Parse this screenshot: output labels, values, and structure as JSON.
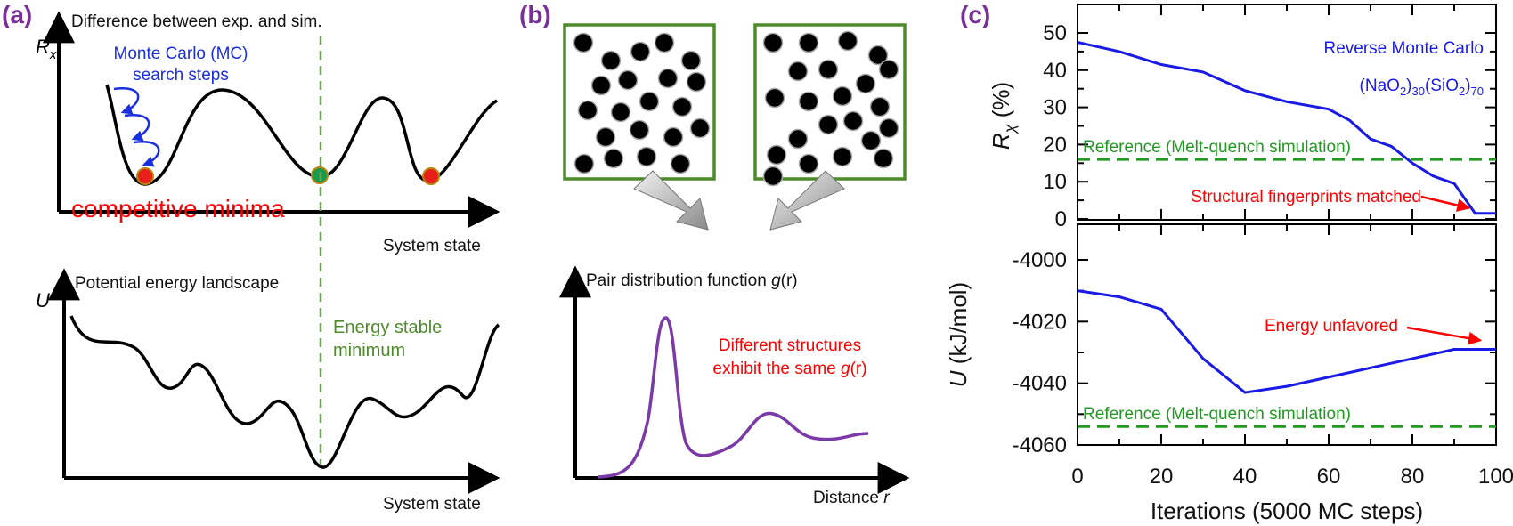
{
  "panels": {
    "a": {
      "label": "(a)",
      "top": {
        "title": "Difference between exp. and sim.",
        "ylabel_main": "R",
        "ylabel_sub": "x",
        "xlabel": "System state",
        "mc_label_line1": "Monte Carlo (MC)",
        "mc_label_line2": "search steps",
        "minima_label": "competitive minima"
      },
      "bottom": {
        "title": "Potential energy landscape",
        "ylabel": "U",
        "xlabel": "System state",
        "stable_label_line1": "Energy stable",
        "stable_label_line2": "minimum"
      },
      "colors": {
        "mc": "#1a2fe0",
        "minima": "#ff0000",
        "stable": "#4c8a2a",
        "dot_red": "#e8201a",
        "dot_green": "#1a9a4a"
      }
    },
    "b": {
      "label": "(b)",
      "gr_title_prefix": "Pair distribution function ",
      "gr_title_g": "g",
      "gr_title_r": "(r)",
      "xlabel_prefix": "Distance ",
      "xlabel_r": "r",
      "note_line1": "Different structures",
      "note_line2_prefix": "exhibit the same ",
      "note_line2_g": "g",
      "note_line2_r": "(r)",
      "colors": {
        "box": "#4c8a2a",
        "curve": "#7b3aa8",
        "note": "#ff0000"
      }
    },
    "c": {
      "label": "(c)",
      "xlabel": "Iterations (5000 MC steps)",
      "colors": {
        "series": "#1a1ae6",
        "reference": "#229a22",
        "annotation": "#ff0000"
      }
    }
  },
  "chart_data": [
    {
      "type": "line",
      "title": "",
      "xlabel": "Iterations (5000 MC steps)",
      "ylabel_main": "R",
      "ylabel_sub": "χ",
      "ylabel_unit": " (%)",
      "xlim": [
        0,
        100
      ],
      "ylim": [
        0,
        50
      ],
      "xticks": [
        0,
        20,
        40,
        60,
        80,
        100
      ],
      "yticks": [
        0,
        10,
        20,
        30,
        40,
        50
      ],
      "series": [
        {
          "name": "Reverse Monte Carlo",
          "x": [
            0,
            10,
            20,
            30,
            40,
            50,
            60,
            65,
            70,
            75,
            80,
            85,
            90,
            95,
            100
          ],
          "y": [
            47.5,
            45,
            41.5,
            39.5,
            34.5,
            31.5,
            29.5,
            26.5,
            21.5,
            19.5,
            15,
            11.5,
            9.5,
            1.5,
            1.5
          ]
        }
      ],
      "reference": {
        "label": "Reference (Melt-quench simulation)",
        "y": 16
      },
      "legend": "Reverse Monte Carlo",
      "composition": {
        "a": "(NaO",
        "a_sub": "2",
        "b": ")",
        "b_sub": "30",
        "c": "(SiO",
        "c_sub": "2",
        "d": ")",
        "d_sub": "70"
      },
      "annotation": {
        "text": "Structural fingerprints matched",
        "x": 94,
        "y": 1.5
      }
    },
    {
      "type": "line",
      "title": "",
      "xlabel": "Iterations (5000 MC steps)",
      "ylabel_main": "U",
      "ylabel_unit": " (kJ/mol)",
      "xlim": [
        0,
        100
      ],
      "ylim": [
        -4060,
        -4000
      ],
      "xticks": [
        0,
        20,
        40,
        60,
        80,
        100
      ],
      "yticks": [
        -4000,
        -4020,
        -4040,
        -4060
      ],
      "series": [
        {
          "name": "Reverse Monte Carlo",
          "x": [
            0,
            10,
            20,
            30,
            40,
            50,
            60,
            70,
            80,
            90,
            95,
            100
          ],
          "y": [
            -4010,
            -4012,
            -4016,
            -4032,
            -4043,
            -4041,
            -4038,
            -4035,
            -4032,
            -4029,
            -4029,
            -4029
          ]
        }
      ],
      "reference": {
        "label": "Reference (Melt-quench simulation)",
        "y": -4054
      },
      "annotation": {
        "text": "Energy unfavored",
        "x": 98,
        "y": -4029
      }
    }
  ]
}
